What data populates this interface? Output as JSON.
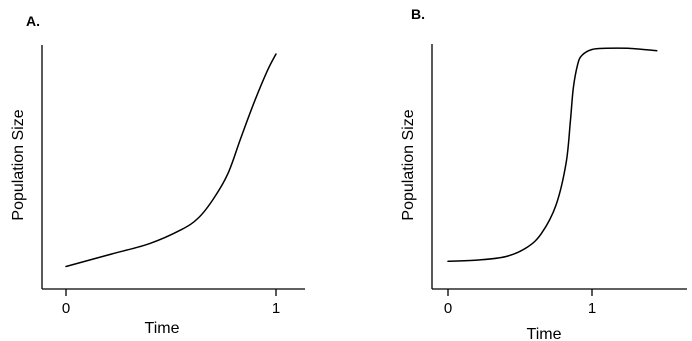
{
  "chart_data": [
    {
      "panel_label": "A.",
      "type": "line",
      "xlabel": "Time",
      "ylabel": "Population Size",
      "xlim": [
        0,
        1
      ],
      "ylim": [
        0,
        1
      ],
      "x_ticks": [
        0,
        1
      ],
      "x_tick_labels": [
        "0",
        "1"
      ],
      "grid": false,
      "description_shape": "exponential",
      "series": [
        {
          "x": [
            0,
            0.2,
            0.4,
            0.55,
            0.63,
            0.7,
            0.77,
            0.83,
            0.9,
            0.96,
            1.0
          ],
          "y": [
            0.08,
            0.13,
            0.18,
            0.24,
            0.29,
            0.37,
            0.48,
            0.63,
            0.8,
            0.93,
            1.0
          ]
        }
      ]
    },
    {
      "panel_label": "B.",
      "type": "line",
      "xlabel": "Time",
      "ylabel": "Population Size",
      "xlim": [
        0,
        1.5
      ],
      "ylim": [
        0,
        1
      ],
      "x_ticks": [
        0,
        1
      ],
      "x_tick_labels": [
        "0",
        "1"
      ],
      "grid": false,
      "description_shape": "logistic",
      "series": [
        {
          "x": [
            0,
            0.2,
            0.4,
            0.55,
            0.65,
            0.75,
            0.82,
            0.85,
            0.87,
            0.9,
            0.93,
            1.0,
            1.1,
            1.25,
            1.45
          ],
          "y": [
            0.08,
            0.085,
            0.1,
            0.14,
            0.2,
            0.32,
            0.5,
            0.68,
            0.82,
            0.92,
            0.96,
            0.985,
            0.99,
            0.99,
            0.98
          ]
        }
      ]
    }
  ]
}
